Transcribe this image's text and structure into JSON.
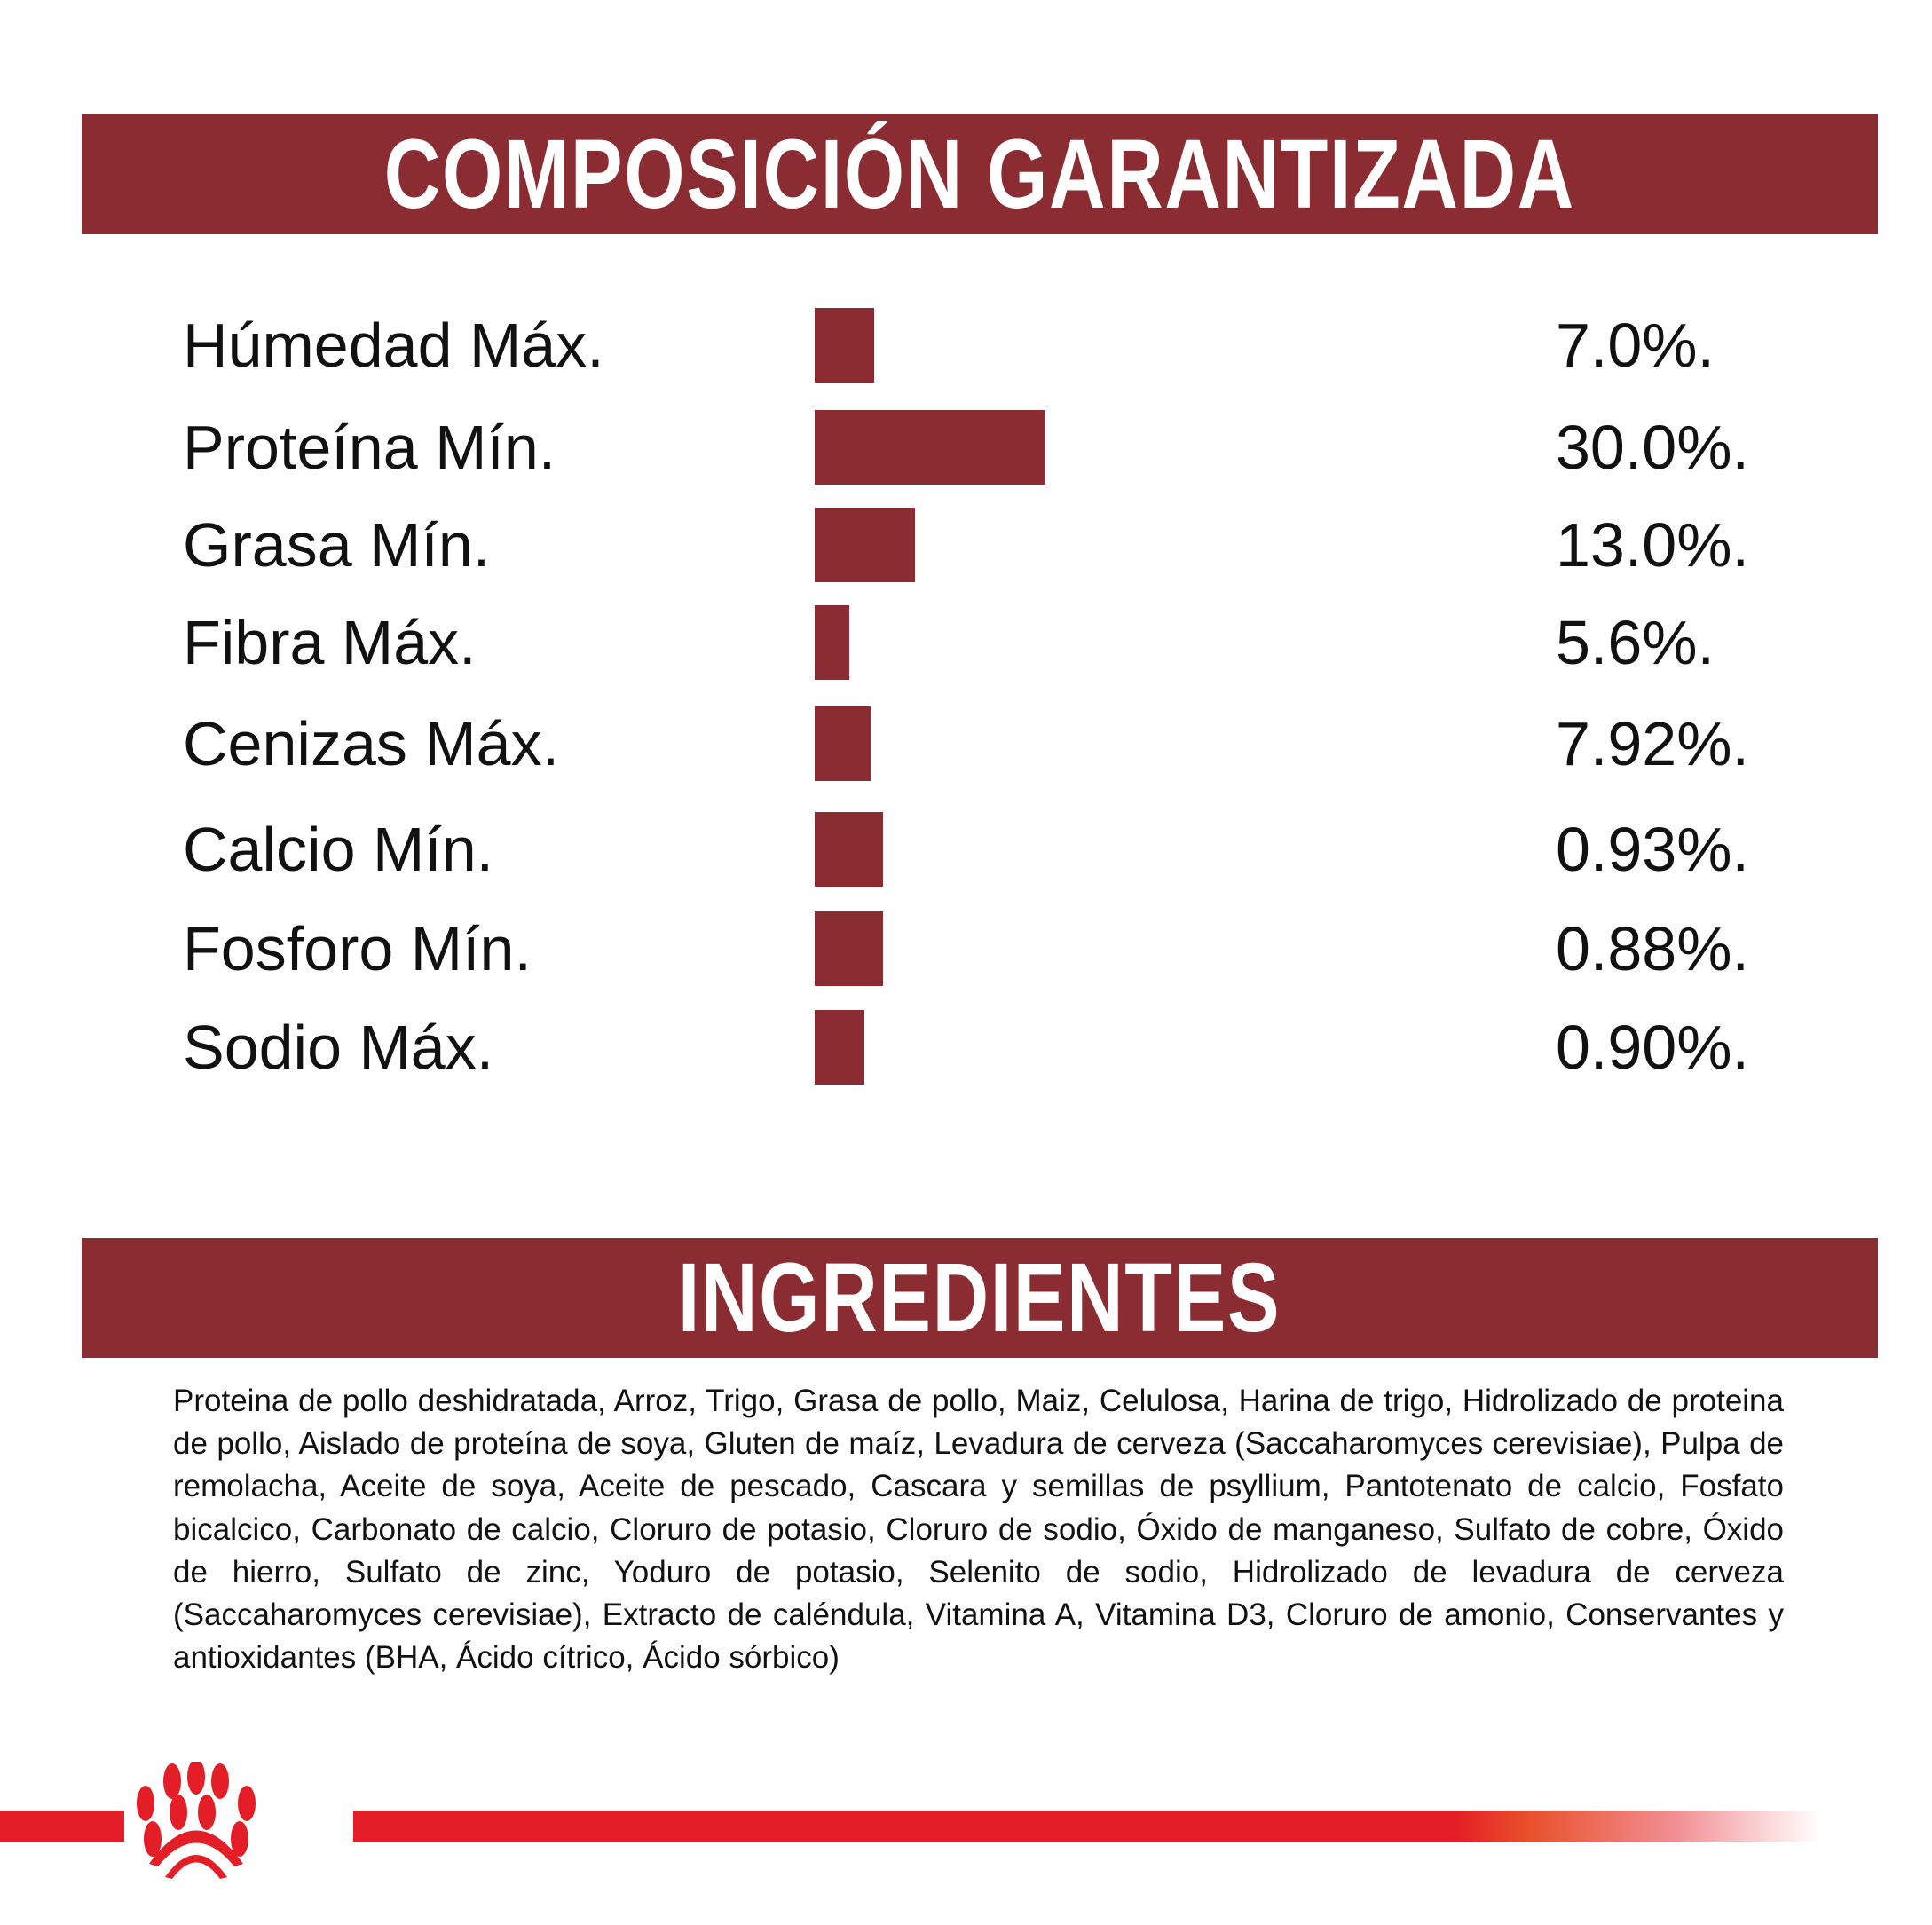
{
  "composition": {
    "title": "COMPOSICIÓN GARANTIZADA",
    "bar_color": "#8b2c32",
    "rows": [
      {
        "label": "Húmedad Máx.",
        "value": "7.0%."
      },
      {
        "label": "Proteína Mín.",
        "value": "30.0%."
      },
      {
        "label": "Grasa Mín.",
        "value": "13.0%."
      },
      {
        "label": "Fibra Máx.",
        "value": "5.6%."
      },
      {
        "label": "Cenizas Máx.",
        "value": "7.92%."
      },
      {
        "label": "Calcio Mín.",
        "value": "0.93%."
      },
      {
        "label": "Fosforo Mín.",
        "value": "0.88%."
      },
      {
        "label": "Sodio Máx.",
        "value": "0.90%."
      }
    ]
  },
  "ingredients": {
    "title": "INGREDIENTES",
    "text": "Proteina de pollo deshidratada, Arroz, Trigo, Grasa de pollo, Maiz, Celulosa, Harina de trigo, Hidrolizado de proteina de pollo, Aislado de proteína de soya, Gluten de maíz, Levadura de cerveza (Saccaharomyces cerevisiae), Pulpa de remolacha, Aceite de soya, Aceite de pescado, Cascara y semillas de psyllium, Pantotenato de calcio, Fosfato bicalcico, Carbonato de calcio, Cloruro de potasio, Cloruro de sodio, Óxido de manganeso, Sulfato de cobre, Óxido de hierro, Sulfato de zinc, Yoduro de potasio, Selenito de sodio, Hidrolizado de levadura de cerveza (Saccaharomyces cerevisiae), Extracto de caléndula, Vitamina A, Vitamina D3, Cloruro de amonio, Conservantes y antioxidantes (BHA, Ácido cítrico, Ácido sórbico)"
  },
  "footer": {
    "logo_icon": "royal-canin-crown-icon",
    "accent_color": "#e41e26"
  }
}
